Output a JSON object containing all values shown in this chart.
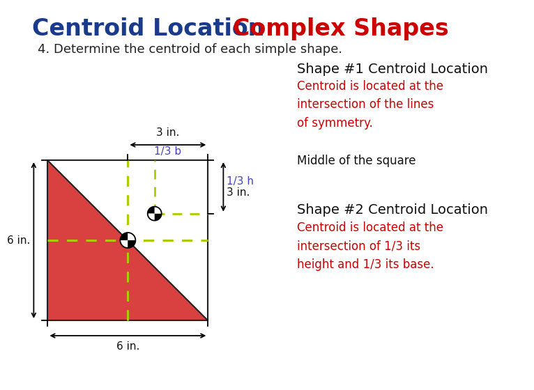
{
  "title_part1": "Centroid Location",
  "title_part2": "Complex Shapes",
  "title_part1_color": "#1a3a8c",
  "title_part2_color": "#cc0000",
  "title_fontsize": 24,
  "subtitle": "4. Determine the centroid of each simple shape.",
  "subtitle_fontsize": 13,
  "subtitle_color": "#222222",
  "bg_color": "#ffffff",
  "square_color": "#d94040",
  "square_edge_color": "#222222",
  "triangle_color": "#ffffff",
  "dashed_line_color": "#aacc00",
  "dim_color": "#111111",
  "shape1_title": "Shape #1 Centroid Location",
  "shape1_title_fontsize": 14,
  "shape1_title_color": "#111111",
  "shape1_text1": "Centroid is located at the\nintersection of the lines\nof symmetry.",
  "shape1_text1_color": "#cc0000",
  "shape1_text1_fontsize": 12,
  "shape1_text2": "Middle of the square",
  "shape1_text2_color": "#111111",
  "shape1_text2_fontsize": 12,
  "shape2_title": "Shape #2 Centroid Location",
  "shape2_title_fontsize": 14,
  "shape2_title_color": "#111111",
  "shape2_text1": "Centroid is located at the\nintersection of 1/3 its\nheight and 1/3 its base.",
  "shape2_text1_color": "#cc0000",
  "shape2_text1_fontsize": 12,
  "annotation_color_blue": "#4444bb",
  "ann_3in_top": "3 in.",
  "ann_1_3b": "1/3 b",
  "ann_1_3h": "1/3 h",
  "ann_3in_right": "3 in.",
  "ann_6in_left": "6 in.",
  "ann_6in_bottom": "6 in."
}
